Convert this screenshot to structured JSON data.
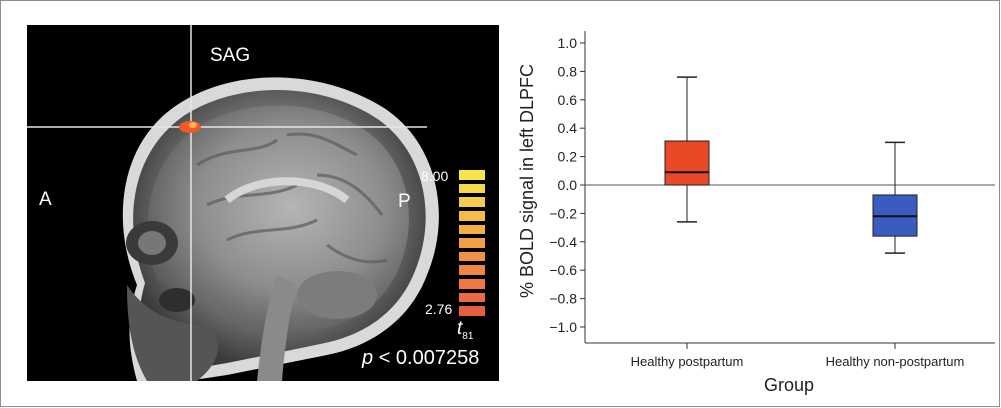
{
  "brain_panel": {
    "view_label": "SAG",
    "anterior_label": "A",
    "posterior_label": "P",
    "colorbar": {
      "max_label": "8.00",
      "min_label": "2.76",
      "stat_symbol": "t",
      "stat_subscript": "81",
      "colors": [
        "#f7e34a",
        "#f6d84a",
        "#f5cb4a",
        "#f4bd49",
        "#f3ae48",
        "#f2a047",
        "#f19146",
        "#f08445",
        "#ee7744",
        "#ec6a42",
        "#e85d3f"
      ]
    },
    "p_prefix": "p",
    "p_value": "< 0.007258",
    "activation_color": "#f05a28"
  },
  "chart_data": {
    "type": "box",
    "xlabel": "Group",
    "ylabel": "% BOLD signal in left DLPFC",
    "ylim": [
      -1.1,
      1.1
    ],
    "yticks": [
      "1.0",
      "0.8",
      "0.6",
      "0.4",
      "0.2",
      "0.0",
      "−0.2",
      "−0.4",
      "−0.6",
      "−0.8",
      "−1.0"
    ],
    "ytick_values": [
      1.0,
      0.8,
      0.6,
      0.4,
      0.2,
      0.0,
      -0.2,
      -0.4,
      -0.6,
      -0.8,
      -1.0
    ],
    "reference_line": 0.0,
    "categories": [
      "Healthy postpartum",
      "Healthy non-postpartum"
    ],
    "boxes": [
      {
        "category": "Healthy postpartum",
        "whisker_low": -0.26,
        "q1": 0.0,
        "median": 0.09,
        "q3": 0.31,
        "whisker_high": 0.76,
        "color": "#e84a27"
      },
      {
        "category": "Healthy non-postpartum",
        "whisker_low": -0.48,
        "q1": -0.36,
        "median": -0.22,
        "q3": -0.07,
        "whisker_high": 0.3,
        "color": "#3a5bbf"
      }
    ]
  }
}
